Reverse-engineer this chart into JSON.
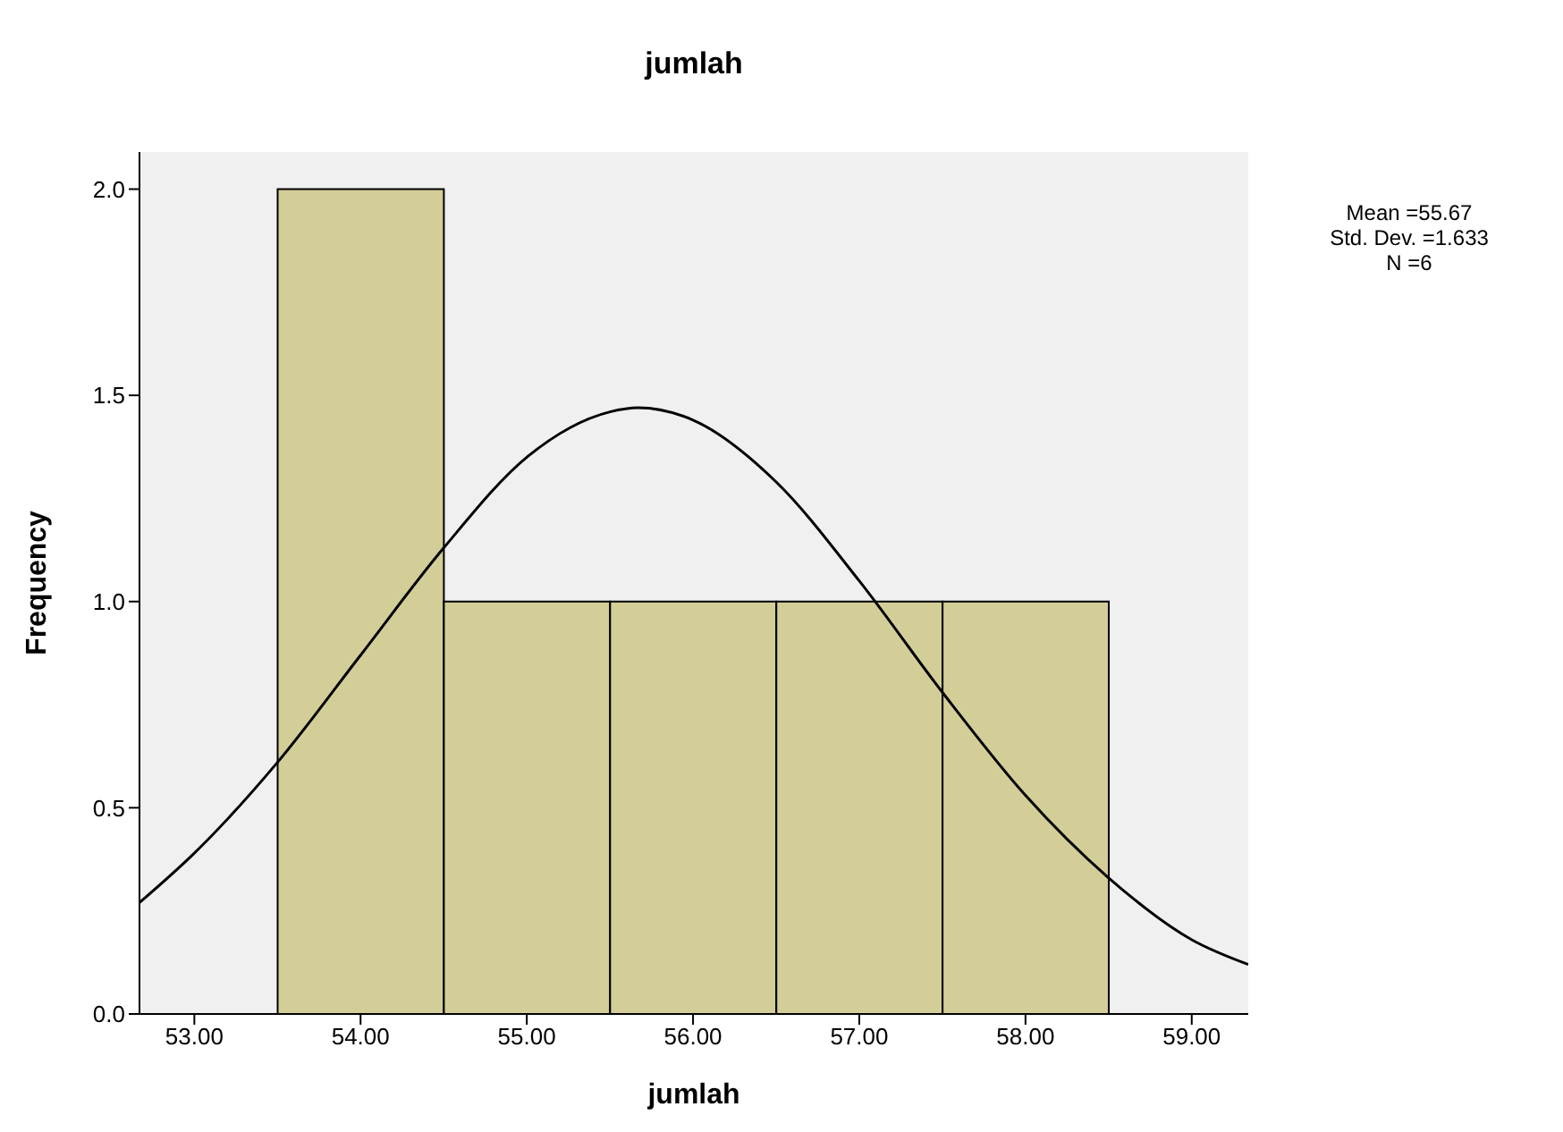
{
  "chart_data": {
    "type": "histogram",
    "title": "jumlah",
    "xlabel": "jumlah",
    "ylabel": "Frequency",
    "bins": [
      53.5,
      54.5,
      55.5,
      56.5,
      57.5,
      58.5
    ],
    "values": [
      2,
      1,
      1,
      1,
      1
    ],
    "color": "#d3ce97",
    "series": [
      {
        "type": "line",
        "color": "#000000",
        "x": [
          52.67,
          53.0,
          53.5,
          54.0,
          54.5,
          55.0,
          55.5,
          55.67,
          56.0,
          56.5,
          57.0,
          57.5,
          58.0,
          58.5,
          59.0,
          59.34
        ],
        "values": [
          0.27,
          0.39,
          0.61,
          0.87,
          1.13,
          1.35,
          1.46,
          1.47,
          1.44,
          1.29,
          1.05,
          0.78,
          0.53,
          0.33,
          0.18,
          0.12
        ]
      }
    ],
    "xlim": [
      52.67,
      59.34
    ],
    "xticks": [
      {
        "value": 53,
        "label": "53.00"
      },
      {
        "value": 54,
        "label": "54.00"
      },
      {
        "value": 55,
        "label": "55.00"
      },
      {
        "value": 56,
        "label": "56.00"
      },
      {
        "value": 57,
        "label": "57.00"
      },
      {
        "value": 58,
        "label": "58.00"
      },
      {
        "value": 59,
        "label": "59.00"
      }
    ],
    "ylim": [
      0,
      2.09
    ],
    "yticks": [
      {
        "value": 0,
        "label": "0.0"
      },
      {
        "value": 0.5,
        "label": "0.5"
      },
      {
        "value": 1,
        "label": "1.0"
      },
      {
        "value": 1.5,
        "label": "1.5"
      },
      {
        "value": 2,
        "label": "2.0"
      }
    ],
    "annotations": [
      "Mean =55.67",
      "Std. Dev. =1.633",
      "N =6"
    ],
    "marker": "none"
  }
}
